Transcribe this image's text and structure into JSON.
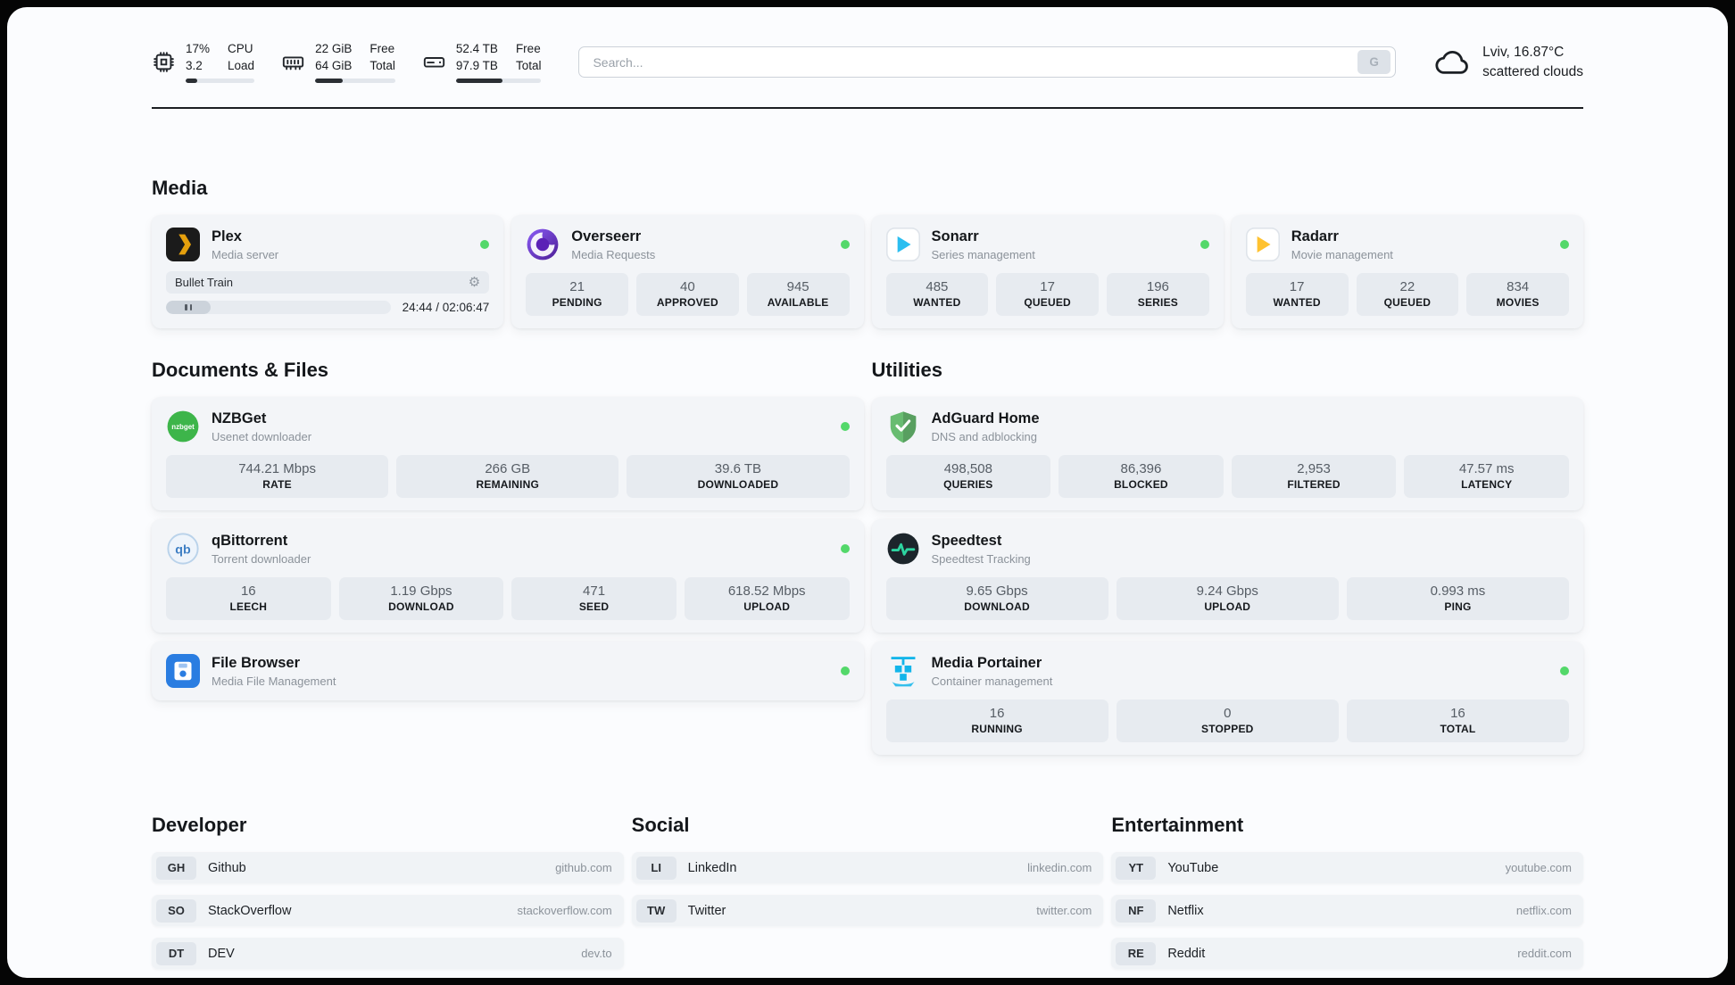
{
  "colors": {
    "status_online": "#53d86a",
    "page_background": "#fbfcfe",
    "card_background": "#f3f5f8",
    "stat_background": "#e7ebf0",
    "plex_accent": "#e5a00d",
    "sonarr_accent": "#2bbef0",
    "radarr_accent": "#ffc230",
    "overseerr_accent": "#5d2bb8",
    "nzbget_accent": "#3db54a",
    "filebrowser_accent": "#2a7de1",
    "adguard_accent": "#68bc71",
    "speedtest_pulse": "#2dd4a0",
    "portainer_accent": "#13b5ea"
  },
  "topbar": {
    "cpu": {
      "value_top": "17%",
      "value_bottom": "3.2",
      "label_top": "CPU",
      "label_bottom": "Load",
      "percent": 17
    },
    "memory": {
      "value_top": "22 GiB",
      "value_bottom": "64 GiB",
      "label_top": "Free",
      "label_bottom": "Total",
      "percent": 34
    },
    "disk": {
      "value_top": "52.4 TB",
      "value_bottom": "97.9 TB",
      "label_top": "Free",
      "label_bottom": "Total",
      "percent": 54
    },
    "search": {
      "placeholder": "Search...",
      "button_label": "G"
    },
    "weather": {
      "location": "Lviv, 16.87°C",
      "condition": "scattered clouds"
    }
  },
  "media": {
    "heading": "Media",
    "plex": {
      "title": "Plex",
      "subtitle": "Media server",
      "now_playing": "Bullet Train",
      "time": "24:44 / 02:06:47",
      "progress_percent": 20
    },
    "overseerr": {
      "title": "Overseerr",
      "subtitle": "Media Requests",
      "stats": [
        {
          "value": "21",
          "label": "PENDING"
        },
        {
          "value": "40",
          "label": "APPROVED"
        },
        {
          "value": "945",
          "label": "AVAILABLE"
        }
      ]
    },
    "sonarr": {
      "title": "Sonarr",
      "subtitle": "Series management",
      "stats": [
        {
          "value": "485",
          "label": "WANTED"
        },
        {
          "value": "17",
          "label": "QUEUED"
        },
        {
          "value": "196",
          "label": "SERIES"
        }
      ]
    },
    "radarr": {
      "title": "Radarr",
      "subtitle": "Movie management",
      "stats": [
        {
          "value": "17",
          "label": "WANTED"
        },
        {
          "value": "22",
          "label": "QUEUED"
        },
        {
          "value": "834",
          "label": "MOVIES"
        }
      ]
    }
  },
  "documents": {
    "heading": "Documents & Files",
    "nzbget": {
      "title": "NZBGet",
      "subtitle": "Usenet downloader",
      "icon_text": "nzbget",
      "stats": [
        {
          "value": "744.21 Mbps",
          "label": "RATE"
        },
        {
          "value": "266 GB",
          "label": "REMAINING"
        },
        {
          "value": "39.6 TB",
          "label": "DOWNLOADED"
        }
      ]
    },
    "qbittorrent": {
      "title": "qBittorrent",
      "subtitle": "Torrent downloader",
      "icon_text": "qb",
      "stats": [
        {
          "value": "16",
          "label": "LEECH"
        },
        {
          "value": "1.19 Gbps",
          "label": "DOWNLOAD"
        },
        {
          "value": "471",
          "label": "SEED"
        },
        {
          "value": "618.52 Mbps",
          "label": "UPLOAD"
        }
      ]
    },
    "filebrowser": {
      "title": "File Browser",
      "subtitle": "Media File Management"
    }
  },
  "utilities": {
    "heading": "Utilities",
    "adguard": {
      "title": "AdGuard Home",
      "subtitle": "DNS and adblocking",
      "stats": [
        {
          "value": "498,508",
          "label": "QUERIES"
        },
        {
          "value": "86,396",
          "label": "BLOCKED"
        },
        {
          "value": "2,953",
          "label": "FILTERED"
        },
        {
          "value": "47.57 ms",
          "label": "LATENCY"
        }
      ]
    },
    "speedtest": {
      "title": "Speedtest",
      "subtitle": "Speedtest Tracking",
      "stats": [
        {
          "value": "9.65 Gbps",
          "label": "DOWNLOAD"
        },
        {
          "value": "9.24 Gbps",
          "label": "UPLOAD"
        },
        {
          "value": "0.993 ms",
          "label": "PING"
        }
      ]
    },
    "portainer": {
      "title": "Media Portainer",
      "subtitle": "Container management",
      "stats": [
        {
          "value": "16",
          "label": "RUNNING"
        },
        {
          "value": "0",
          "label": "STOPPED"
        },
        {
          "value": "16",
          "label": "TOTAL"
        }
      ]
    }
  },
  "bookmarks": {
    "developer": {
      "heading": "Developer",
      "items": [
        {
          "abbr": "GH",
          "name": "Github",
          "url": "github.com"
        },
        {
          "abbr": "SO",
          "name": "StackOverflow",
          "url": "stackoverflow.com"
        },
        {
          "abbr": "DT",
          "name": "DEV",
          "url": "dev.to"
        }
      ]
    },
    "social": {
      "heading": "Social",
      "items": [
        {
          "abbr": "LI",
          "name": "LinkedIn",
          "url": "linkedin.com"
        },
        {
          "abbr": "TW",
          "name": "Twitter",
          "url": "twitter.com"
        }
      ]
    },
    "entertainment": {
      "heading": "Entertainment",
      "items": [
        {
          "abbr": "YT",
          "name": "YouTube",
          "url": "youtube.com"
        },
        {
          "abbr": "NF",
          "name": "Netflix",
          "url": "netflix.com"
        },
        {
          "abbr": "RE",
          "name": "Reddit",
          "url": "reddit.com"
        }
      ]
    }
  }
}
